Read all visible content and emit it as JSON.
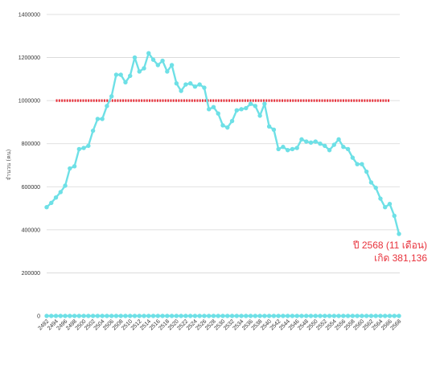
{
  "chart_data": {
    "type": "line",
    "title": "",
    "xlabel": "",
    "ylabel": "จำนวน (คน)",
    "ylim": [
      0,
      1400000
    ],
    "y_ticks": [
      0,
      200000,
      400000,
      600000,
      800000,
      1000000,
      1200000,
      1400000
    ],
    "x_tick_labels": [
      "2492",
      "2494",
      "2496",
      "2498",
      "2500",
      "2502",
      "2504",
      "2506",
      "2508",
      "2510",
      "2512",
      "2514",
      "2516",
      "2518",
      "2520",
      "2522",
      "2524",
      "2526",
      "2528",
      "2530",
      "2532",
      "2534",
      "2536",
      "2538",
      "2540",
      "2542",
      "2544",
      "2546",
      "2548",
      "2550",
      "2552",
      "2554",
      "2556",
      "2558",
      "2560",
      "2562",
      "2564",
      "2566",
      "2568"
    ],
    "grid": "horizontal",
    "colors": {
      "series": "#6ee0e6",
      "reference": "#e8323c",
      "annotation": "#e8323c",
      "grid": "#d6d6d6"
    },
    "reference_line": {
      "y": 1000000,
      "x_start": 2494,
      "x_end": 2566,
      "style": "dashed"
    },
    "series": [
      {
        "x": [
          2492,
          2493,
          2494,
          2495,
          2496,
          2497,
          2498,
          2499,
          2500,
          2501,
          2502,
          2503,
          2504,
          2505,
          2506,
          2507,
          2508,
          2509,
          2510,
          2511,
          2512,
          2513,
          2514,
          2515,
          2516,
          2517,
          2518,
          2519,
          2520,
          2521,
          2522,
          2523,
          2524,
          2525,
          2526,
          2527,
          2528,
          2529,
          2530,
          2531,
          2532,
          2533,
          2534,
          2535,
          2536,
          2537,
          2538,
          2539,
          2540,
          2541,
          2542,
          2543,
          2544,
          2545,
          2546,
          2547,
          2548,
          2549,
          2550,
          2551,
          2552,
          2553,
          2554,
          2555,
          2556,
          2557,
          2558,
          2559,
          2560,
          2561,
          2562,
          2563,
          2564,
          2565,
          2566,
          2567,
          2568
        ],
        "values": [
          505000,
          525000,
          550000,
          575000,
          605000,
          685000,
          695000,
          775000,
          780000,
          790000,
          860000,
          915000,
          915000,
          975000,
          1020000,
          1120000,
          1120000,
          1085000,
          1115000,
          1200000,
          1135000,
          1150000,
          1220000,
          1190000,
          1165000,
          1185000,
          1135000,
          1165000,
          1080000,
          1045000,
          1075000,
          1080000,
          1065000,
          1075000,
          1060000,
          960000,
          970000,
          940000,
          885000,
          875000,
          905000,
          955000,
          960000,
          965000,
          985000,
          975000,
          930000,
          985000,
          880000,
          865000,
          775000,
          785000,
          770000,
          775000,
          780000,
          820000,
          810000,
          805000,
          810000,
          800000,
          790000,
          770000,
          795000,
          820000,
          785000,
          775000,
          735000,
          705000,
          705000,
          670000,
          620000,
          595000,
          545000,
          505000,
          520000,
          465000,
          381136
        ]
      },
      {
        "x": [
          2492,
          2493,
          2494,
          2495,
          2496,
          2497,
          2498,
          2499,
          2500,
          2501,
          2502,
          2503,
          2504,
          2505,
          2506,
          2507,
          2508,
          2509,
          2510,
          2511,
          2512,
          2513,
          2514,
          2515,
          2516,
          2517,
          2518,
          2519,
          2520,
          2521,
          2522,
          2523,
          2524,
          2525,
          2526,
          2527,
          2528,
          2529,
          2530,
          2531,
          2532,
          2533,
          2534,
          2535,
          2536,
          2537,
          2538,
          2539,
          2540,
          2541,
          2542,
          2543,
          2544,
          2545,
          2546,
          2547,
          2548,
          2549,
          2550,
          2551,
          2552,
          2553,
          2554,
          2555,
          2556,
          2557,
          2558,
          2559,
          2560,
          2561,
          2562,
          2563,
          2564,
          2565,
          2566,
          2567,
          2568
        ],
        "values": [
          0,
          0,
          0,
          0,
          0,
          0,
          0,
          0,
          0,
          0,
          0,
          0,
          0,
          0,
          0,
          0,
          0,
          0,
          0,
          0,
          0,
          0,
          0,
          0,
          0,
          0,
          0,
          0,
          0,
          0,
          0,
          0,
          0,
          0,
          0,
          0,
          0,
          0,
          0,
          0,
          0,
          0,
          0,
          0,
          0,
          0,
          0,
          0,
          0,
          0,
          0,
          0,
          0,
          0,
          0,
          0,
          0,
          0,
          0,
          0,
          0,
          0,
          0,
          0,
          0,
          0,
          0,
          0,
          0,
          0,
          0,
          0,
          0,
          0,
          0,
          0,
          0
        ]
      }
    ],
    "annotation": {
      "line1": "ปี 2568 (11 เดือน)",
      "line2": "เกิด 381,136",
      "anchor_x": 2568,
      "anchor_y": 381136
    }
  }
}
